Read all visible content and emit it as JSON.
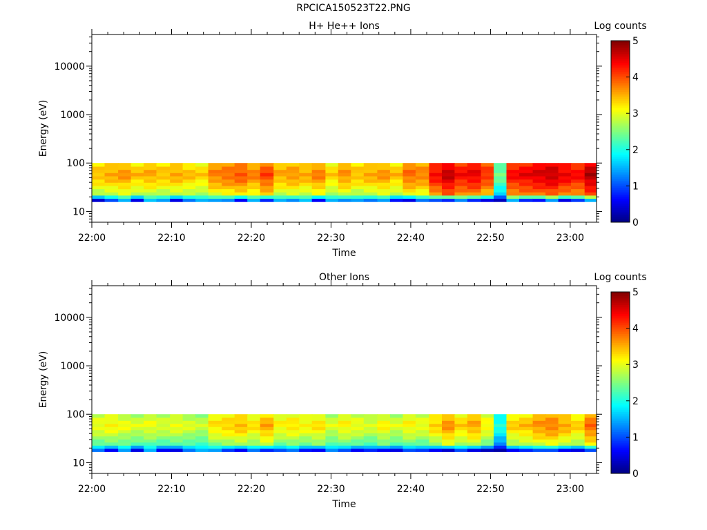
{
  "page_title": "RPCICA150523T22.PNG",
  "chart_data": [
    {
      "type": "heatmap",
      "title": "H+ He++ Ions",
      "ylabel": "Energy (eV)",
      "xlabel": "Time",
      "yscale": "log",
      "ylim": [
        6,
        45000
      ],
      "ytick_labels": [
        "10",
        "100",
        "1000",
        "10000"
      ],
      "ytick_values": [
        10,
        100,
        1000,
        10000
      ],
      "xtick_labels": [
        "22:00",
        "22:10",
        "22:20",
        "22:30",
        "22:40",
        "22:50",
        "23:00"
      ],
      "xtick_minutes": [
        0,
        10,
        20,
        30,
        40,
        50,
        60
      ],
      "xlim_minutes": [
        0,
        63.3
      ],
      "colorbar": {
        "label": "Log counts",
        "range": [
          0,
          5
        ],
        "ticks": [
          "0",
          "1",
          "2",
          "3",
          "4",
          "5"
        ]
      },
      "energy_band_ev": [
        16,
        100
      ],
      "time_min": [
        0,
        1.6,
        3.3,
        4.9,
        6.5,
        8.1,
        9.8,
        11.4,
        13.0,
        14.6,
        16.3,
        17.9,
        19.5,
        21.1,
        22.8,
        24.4,
        26.0,
        27.6,
        29.3,
        30.9,
        32.5,
        34.1,
        35.8,
        37.4,
        39.0,
        40.6,
        42.3,
        43.9,
        45.5,
        47.1,
        48.8,
        50.4,
        52.0,
        53.6,
        55.3,
        56.9,
        58.5,
        60.1,
        61.8
      ],
      "peak_log_counts": [
        3.6,
        3.7,
        3.8,
        3.6,
        3.7,
        3.6,
        3.7,
        3.6,
        3.5,
        3.9,
        4.0,
        4.1,
        3.9,
        4.2,
        3.7,
        3.8,
        3.7,
        3.9,
        3.5,
        3.8,
        3.6,
        3.7,
        3.8,
        3.6,
        4.0,
        3.9,
        4.5,
        4.8,
        4.5,
        4.6,
        4.3,
        2.6,
        4.5,
        4.6,
        4.7,
        4.8,
        4.6,
        4.5,
        4.9
      ],
      "low_edge_log_counts": [
        0.4,
        1.0,
        1.5,
        0.5,
        1.6,
        1.4,
        0.5,
        1.2,
        1.5,
        1.4,
        1.3,
        0.6,
        1.5,
        0.8,
        1.5,
        1.3,
        1.6,
        0.6,
        1.5,
        1.3,
        1.4,
        1.2,
        1.4,
        0.7,
        0.5,
        1.2,
        1.0,
        0.8,
        1.3,
        0.8,
        0.5,
        0.3,
        1.5,
        0.8,
        0.7,
        1.4,
        0.5,
        0.9,
        1.5
      ]
    },
    {
      "type": "heatmap",
      "title": "Other Ions",
      "ylabel": "Energy (eV)",
      "xlabel": "Time",
      "yscale": "log",
      "ylim": [
        6,
        45000
      ],
      "ytick_labels": [
        "10",
        "100",
        "1000",
        "10000"
      ],
      "ytick_values": [
        10,
        100,
        1000,
        10000
      ],
      "xtick_labels": [
        "22:00",
        "22:10",
        "22:20",
        "22:30",
        "22:40",
        "22:50",
        "23:00"
      ],
      "xtick_minutes": [
        0,
        10,
        20,
        30,
        40,
        50,
        60
      ],
      "xlim_minutes": [
        0,
        63.3
      ],
      "colorbar": {
        "label": "Log counts",
        "range": [
          0,
          5
        ],
        "ticks": [
          "0",
          "1",
          "2",
          "3",
          "4",
          "5"
        ]
      },
      "energy_band_ev": [
        17,
        100
      ],
      "time_min": [
        0,
        1.6,
        3.3,
        4.9,
        6.5,
        8.1,
        9.8,
        11.4,
        13.0,
        14.6,
        16.3,
        17.9,
        19.5,
        21.1,
        22.8,
        24.4,
        26.0,
        27.6,
        29.3,
        30.9,
        32.5,
        34.1,
        35.8,
        37.4,
        39.0,
        40.6,
        42.3,
        43.9,
        45.5,
        47.1,
        48.8,
        50.4,
        52.0,
        53.6,
        55.3,
        56.9,
        58.5,
        60.1,
        61.8
      ],
      "peak_log_counts": [
        3.2,
        3.3,
        3.2,
        3.1,
        3.2,
        3.1,
        3.2,
        3.1,
        3.0,
        3.4,
        3.5,
        3.6,
        3.4,
        3.7,
        3.3,
        3.4,
        3.3,
        3.4,
        3.1,
        3.3,
        3.2,
        3.1,
        3.3,
        3.1,
        3.3,
        3.2,
        3.5,
        3.8,
        3.5,
        3.7,
        3.3,
        2.2,
        3.5,
        3.6,
        3.8,
        3.9,
        3.7,
        3.5,
        4.0
      ],
      "low_edge_log_counts": [
        1.2,
        0.6,
        1.4,
        0.5,
        1.5,
        0.6,
        0.5,
        1.2,
        1.5,
        1.4,
        0.9,
        0.6,
        1.2,
        0.8,
        1.0,
        1.2,
        0.7,
        0.6,
        1.3,
        1.0,
        0.6,
        0.8,
        0.6,
        0.5,
        1.0,
        0.9,
        0.6,
        0.4,
        1.0,
        0.5,
        0.3,
        0.2,
        0.6,
        0.8,
        1.0,
        1.0,
        0.6,
        0.5,
        1.0
      ]
    }
  ]
}
